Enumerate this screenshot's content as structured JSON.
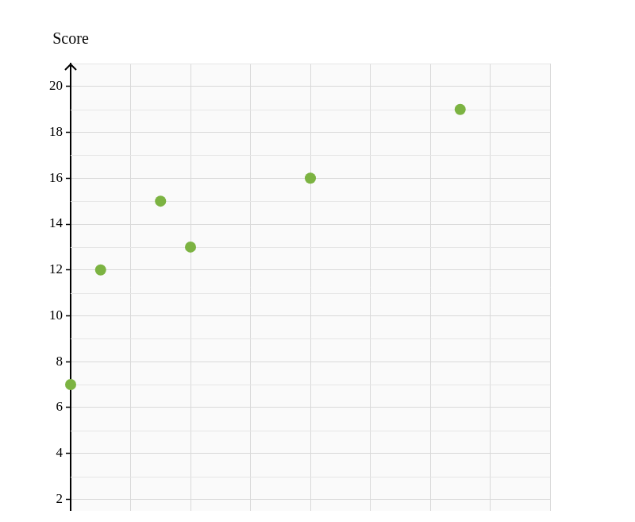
{
  "chart_data": {
    "type": "scatter",
    "ylabel": "Score",
    "x": [
      0,
      0.5,
      1.5,
      2,
      4,
      6.5
    ],
    "values": [
      7,
      12,
      15,
      13,
      16,
      19
    ],
    "color": "#7cb342",
    "marker": "circle",
    "xlim": [
      0,
      8
    ],
    "xticks": [
      0,
      1,
      2,
      3,
      4,
      5,
      6,
      7,
      8
    ],
    "ylim": [
      1.5,
      21
    ],
    "yticks": [
      2,
      4,
      6,
      8,
      10,
      12,
      14,
      16,
      18,
      20
    ],
    "grid": true,
    "tick_labels": "y"
  }
}
